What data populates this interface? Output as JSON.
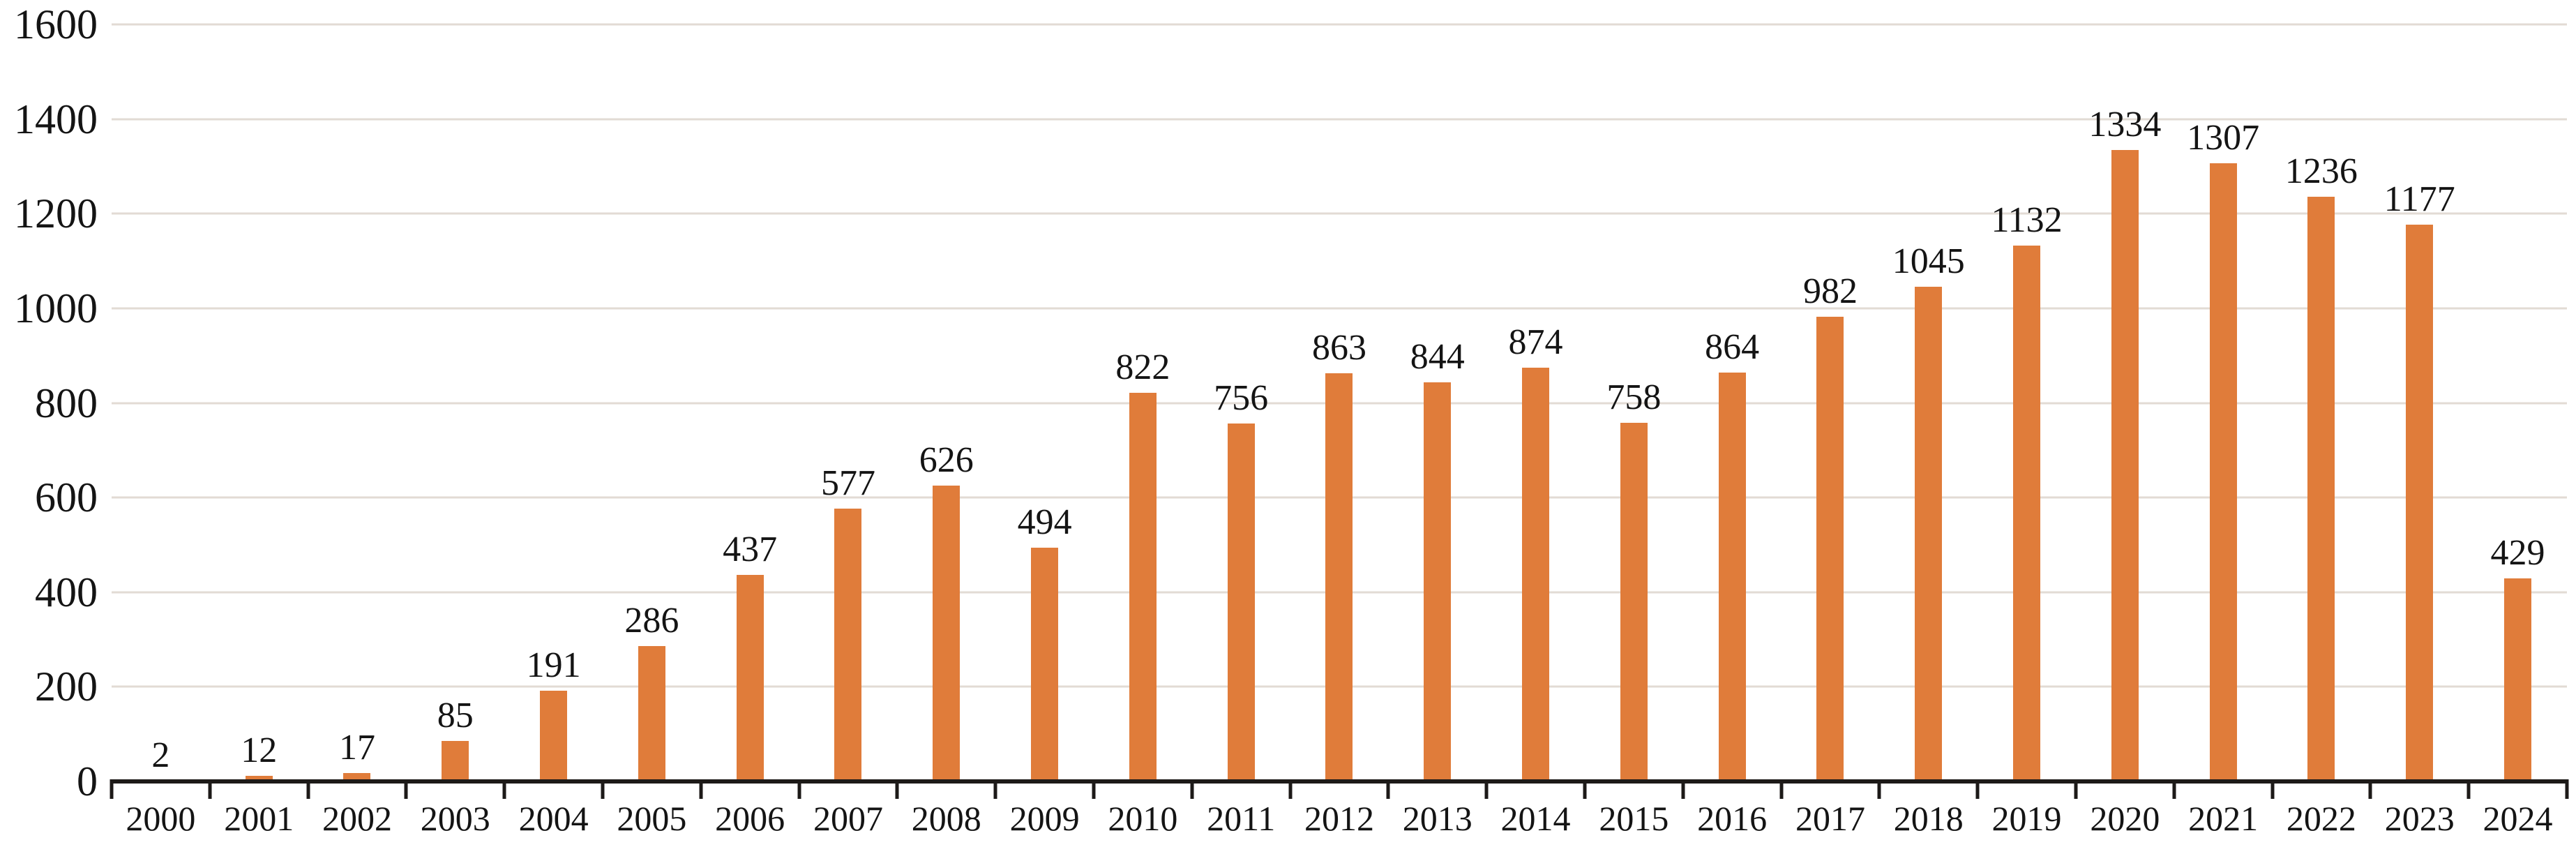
{
  "chart_data": {
    "type": "bar",
    "title": "",
    "xlabel": "",
    "ylabel": "",
    "categories": [
      "2000",
      "2001",
      "2002",
      "2003",
      "2004",
      "2005",
      "2006",
      "2007",
      "2008",
      "2009",
      "2010",
      "2011",
      "2012",
      "2013",
      "2014",
      "2015",
      "2016",
      "2017",
      "2018",
      "2019",
      "2020",
      "2021",
      "2022",
      "2023",
      "2024"
    ],
    "values": [
      2,
      12,
      17,
      85,
      191,
      286,
      437,
      577,
      626,
      494,
      822,
      756,
      863,
      844,
      874,
      758,
      864,
      982,
      1045,
      1132,
      1334,
      1307,
      1236,
      1177,
      429
    ],
    "value_labels_visible": true,
    "ylim": [
      0,
      1600
    ],
    "ytick_interval": 200,
    "y_tick_labels": [
      "0",
      "200",
      "400",
      "600",
      "800",
      "1000",
      "1200",
      "1400",
      "1600"
    ],
    "grid": true,
    "legend_position": "none",
    "colors": {
      "bar": "#e07c3a",
      "gridline": "#e2dbd4",
      "axis": "#1d1a18",
      "text": "#141414",
      "background": "#ffffff"
    }
  }
}
